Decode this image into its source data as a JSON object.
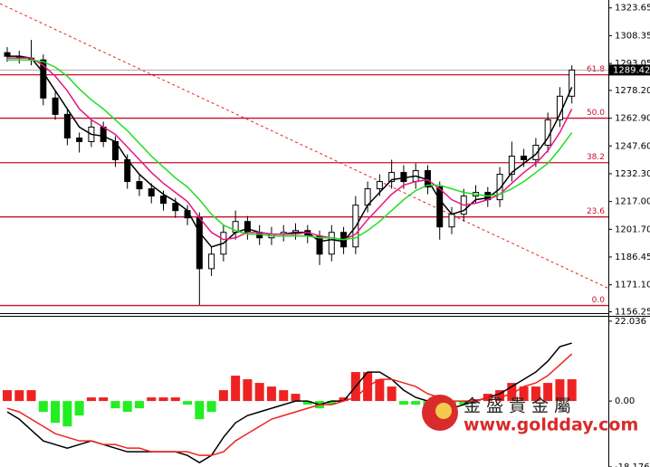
{
  "chart_data": [
    {
      "type": "candlestick",
      "ylim": [
        1156,
        1328
      ],
      "yticks": [
        1323.65,
        {
          "value": 1308.35,
          "label": "1308.35"
        },
        {
          "value": 1293.05,
          "label": "1293.05"
        },
        {
          "value": 1278.2,
          "label": "1278.20"
        },
        {
          "value": 1262.9,
          "label": "1262.90"
        },
        {
          "value": 1247.6,
          "label": "1247.60"
        },
        {
          "value": 1232.3,
          "label": "1232.30"
        },
        {
          "value": 1217,
          "label": "1217.00"
        },
        {
          "value": 1201.7,
          "label": "1201.70"
        },
        {
          "value": 1186.45,
          "label": "1186.45"
        },
        {
          "value": 1171.1,
          "label": "1171.10"
        },
        {
          "value": 1156.25,
          "label": "1156.25"
        }
      ],
      "last_price": 1289.42,
      "open": [
        1299,
        1297,
        1296,
        1295,
        1274,
        1265,
        1252,
        1250,
        1258,
        1250,
        1240,
        1228,
        1224,
        1220,
        1216,
        1212,
        1208,
        1180,
        1188,
        1200,
        1206,
        1200,
        1197,
        1199,
        1200,
        1201,
        1198,
        1188,
        1200,
        1192,
        1215,
        1224,
        1228,
        1233,
        1228,
        1234,
        1225,
        1203,
        1210,
        1220,
        1222,
        1218,
        1232,
        1242,
        1240,
        1248,
        1262,
        1275
      ],
      "high": [
        1302,
        1300,
        1306,
        1298,
        1278,
        1268,
        1255,
        1262,
        1261,
        1253,
        1243,
        1232,
        1227,
        1223,
        1219,
        1215,
        1211,
        1192,
        1204,
        1212,
        1209,
        1204,
        1203,
        1204,
        1205,
        1204,
        1201,
        1204,
        1203,
        1220,
        1228,
        1232,
        1240,
        1237,
        1238,
        1237,
        1228,
        1214,
        1224,
        1226,
        1225,
        1236,
        1250,
        1246,
        1252,
        1266,
        1280,
        1292
      ],
      "low": [
        1294,
        1293,
        1292,
        1270,
        1262,
        1248,
        1244,
        1247,
        1247,
        1236,
        1224,
        1220,
        1216,
        1212,
        1208,
        1204,
        1160,
        1176,
        1184,
        1196,
        1196,
        1193,
        1193,
        1195,
        1196,
        1194,
        1182,
        1184,
        1188,
        1188,
        1211,
        1220,
        1224,
        1224,
        1224,
        1221,
        1196,
        1199,
        1206,
        1216,
        1214,
        1214,
        1228,
        1236,
        1236,
        1244,
        1258,
        1271
      ],
      "close": [
        1297,
        1296,
        1295,
        1274,
        1265,
        1252,
        1250,
        1258,
        1250,
        1240,
        1228,
        1224,
        1220,
        1216,
        1212,
        1208,
        1180,
        1188,
        1200,
        1206,
        1200,
        1197,
        1199,
        1200,
        1201,
        1198,
        1188,
        1200,
        1192,
        1215,
        1224,
        1228,
        1233,
        1228,
        1234,
        1225,
        1203,
        1210,
        1220,
        1222,
        1218,
        1232,
        1242,
        1240,
        1248,
        1262,
        1275,
        1289.42
      ],
      "series": [
        {
          "color": "#000000",
          "values": [
            1297,
            1297,
            1296,
            1288,
            1278,
            1268,
            1258,
            1254,
            1253,
            1250,
            1240,
            1232,
            1226,
            1221,
            1217,
            1212,
            1200,
            1192,
            1194,
            1200,
            1202,
            1200,
            1199,
            1199,
            1200,
            1200,
            1195,
            1196,
            1195,
            1203,
            1215,
            1222,
            1229,
            1230,
            1231,
            1229,
            1218,
            1210,
            1212,
            1218,
            1219,
            1224,
            1233,
            1238,
            1243,
            1252,
            1265,
            1280
          ]
        },
        {
          "color": "#e8157f",
          "values": [
            1296,
            1296,
            1296,
            1292,
            1286,
            1278,
            1268,
            1262,
            1258,
            1254,
            1247,
            1240,
            1233,
            1227,
            1222,
            1217,
            1208,
            1200,
            1196,
            1197,
            1200,
            1200,
            1199,
            1199,
            1199,
            1200,
            1198,
            1197,
            1196,
            1199,
            1207,
            1214,
            1221,
            1226,
            1228,
            1229,
            1224,
            1218,
            1215,
            1216,
            1218,
            1221,
            1227,
            1233,
            1238,
            1245,
            1255,
            1268
          ]
        },
        {
          "color": "#22dd22",
          "values": [
            1295,
            1295,
            1295,
            1294,
            1291,
            1286,
            1279,
            1273,
            1268,
            1262,
            1256,
            1249,
            1242,
            1236,
            1230,
            1225,
            1218,
            1210,
            1204,
            1201,
            1199,
            1199,
            1198,
            1198,
            1198,
            1198,
            1197,
            1197,
            1196,
            1197,
            1201,
            1206,
            1212,
            1218,
            1223,
            1226,
            1226,
            1224,
            1222,
            1221,
            1220,
            1221,
            1224,
            1228,
            1233,
            1238,
            1246,
            1255
          ]
        }
      ],
      "fib_color": "#c8102e",
      "fib_levels": [
        {
          "value": 61.8,
          "label": "61.8",
          "price": 1286.8
        },
        {
          "value": 50,
          "label": "50.0",
          "price": 1262.9
        },
        {
          "value": 38.2,
          "label": "38.2",
          "price": 1238.4
        },
        {
          "value": 23.6,
          "label": "23.6",
          "price": 1208.5
        },
        {
          "value": 0,
          "label": "0.0",
          "price": 1159.7
        }
      ],
      "trendline": {
        "color": "#e8231f",
        "x": [
          -0.6,
          50.1
        ],
        "y": [
          1326,
          1169
        ]
      }
    },
    {
      "type": "macd",
      "ylim": [
        -18.2,
        23.5
      ],
      "yticks": [
        22.036,
        {
          "value": 0,
          "label": "0.00"
        },
        -18.176
      ],
      "histogram": [
        3,
        3,
        3,
        -3,
        -6,
        -7,
        -4,
        1,
        1,
        -2,
        -3,
        -2,
        1,
        1,
        1,
        -1,
        -5,
        -3,
        3,
        7,
        6,
        5,
        4,
        3,
        2,
        -1,
        -2,
        -1,
        1,
        8,
        8,
        6,
        4,
        -1,
        -1,
        -2,
        -3,
        -1,
        -1,
        0.5,
        2,
        3,
        5,
        4,
        4,
        5,
        6,
        6
      ],
      "up_color": "#ee2222",
      "down_color": "#22ee22",
      "series": [
        {
          "color": "#000000",
          "values": [
            -3,
            -5,
            -8,
            -11,
            -12,
            -13,
            -12,
            -11,
            -12,
            -13,
            -14,
            -14,
            -14,
            -14,
            -14,
            -15,
            -17,
            -15,
            -10,
            -6,
            -4,
            -3,
            -2,
            -1,
            0,
            0,
            -1,
            0,
            0,
            4,
            8,
            8,
            6,
            3,
            1,
            0,
            -2,
            -2,
            -1,
            0,
            1,
            2,
            4,
            6,
            8,
            11,
            15,
            16
          ]
        },
        {
          "color": "#ee2222",
          "values": [
            -2,
            -3,
            -5,
            -7,
            -9,
            -10,
            -11,
            -11,
            -12,
            -12,
            -13,
            -13,
            -14,
            -14,
            -14,
            -14,
            -15,
            -15,
            -14,
            -11,
            -9,
            -7,
            -5,
            -4,
            -3,
            -2,
            -1,
            -1,
            0,
            1,
            4,
            6,
            6,
            5,
            4,
            2,
            1,
            0,
            0,
            0,
            1,
            1,
            2,
            4,
            5,
            7,
            10,
            13
          ]
        }
      ]
    }
  ],
  "watermark": {
    "name": "金盛貴金屬",
    "url": "www.goldday.com"
  }
}
